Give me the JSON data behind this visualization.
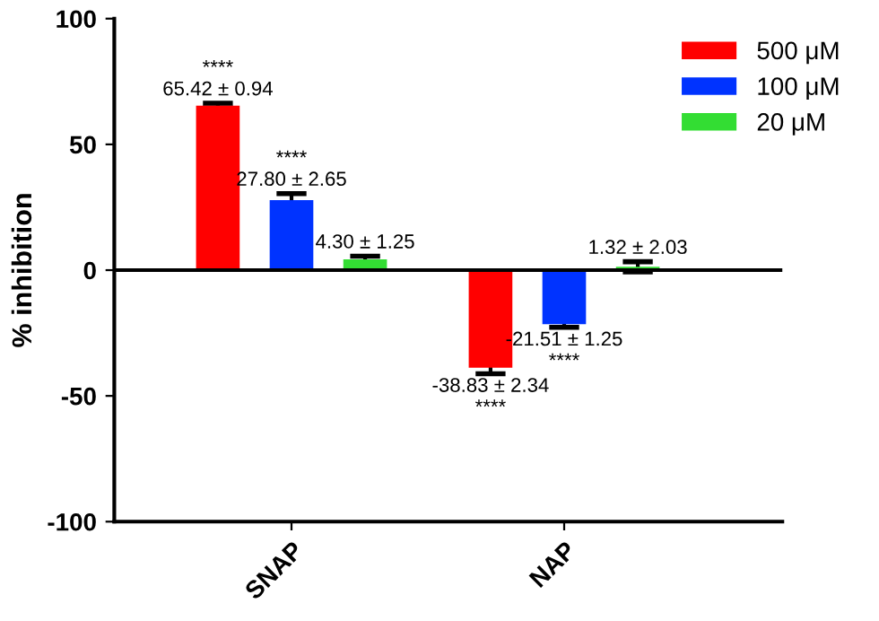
{
  "chart_data": {
    "type": "bar",
    "ylabel": "% inhibition",
    "categories": [
      "SNAP",
      "NAP"
    ],
    "series": [
      {
        "name": "500 μM",
        "color": "#ff0000",
        "values": [
          65.42,
          -38.83
        ],
        "errors": [
          0.94,
          2.34
        ],
        "value_labels": [
          "****\n65.42 ± 0.94",
          "-38.83 ± 2.34\n****"
        ]
      },
      {
        "name": "100 μM",
        "color": "#0033ff",
        "values": [
          27.8,
          -21.51
        ],
        "errors": [
          2.65,
          1.25
        ],
        "value_labels": [
          "****\n27.80 ± 2.65",
          "-21.51 ± 1.25\n****"
        ]
      },
      {
        "name": "20 μM",
        "color": "#33dd33",
        "values": [
          4.3,
          1.32
        ],
        "errors": [
          1.25,
          2.03
        ],
        "value_labels": [
          "4.30 ± 1.25",
          "1.32 ± 2.03"
        ]
      }
    ],
    "ylim": [
      -100,
      100
    ],
    "yticks": [
      -100,
      -50,
      0,
      50,
      100
    ],
    "ref_lines": [
      {
        "axis": "y",
        "value": 0,
        "label": null,
        "color": "#000000"
      }
    ],
    "legend": "top right",
    "grid": false
  }
}
